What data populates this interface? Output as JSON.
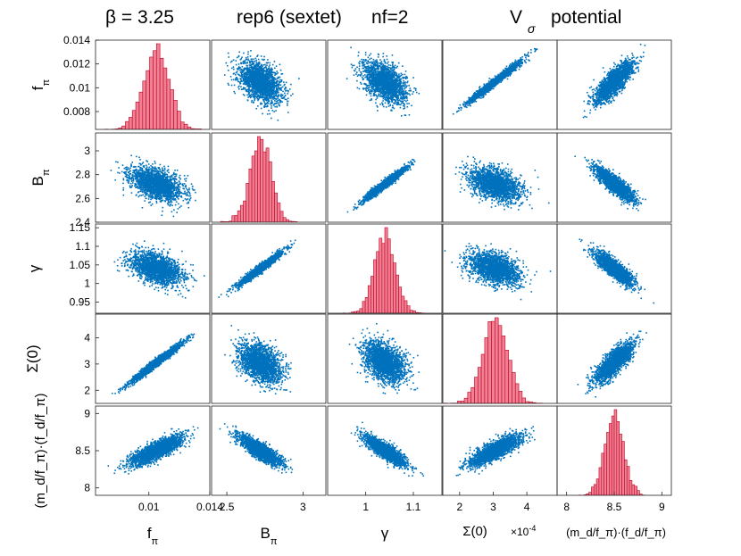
{
  "title": {
    "beta": "β = 3.25",
    "rep": "rep6 (sextet)",
    "nf": "nf=2",
    "potential_main": "V",
    "potential_sub": "σ",
    "potential_word": "potential"
  },
  "colors": {
    "scatter": "#0072bd",
    "hist_fill": "#f08094",
    "hist_edge": "#c00020",
    "axes": "#222222"
  },
  "chart_data": {
    "type": "scatter",
    "layout": "scatter-matrix",
    "variables": [
      {
        "id": "fpi",
        "label_main": "f",
        "label_sub": "π",
        "range": [
          0.0065,
          0.014
        ],
        "ticks": [
          {
            "v": 0.008,
            "t": "0.008"
          },
          {
            "v": 0.01,
            "t": "0.01"
          },
          {
            "v": 0.012,
            "t": "0.012"
          },
          {
            "v": 0.014,
            "t": "0.014"
          }
        ],
        "xticks": [
          {
            "v": 0.01,
            "t": "0.01"
          },
          {
            "v": 0.014,
            "t": "0.014"
          }
        ],
        "mean": 0.0105,
        "sd": 0.00085
      },
      {
        "id": "Bpi",
        "label_main": "B",
        "label_sub": "π",
        "range": [
          2.4,
          3.15
        ],
        "ticks": [
          {
            "v": 2.4,
            "t": "2.4"
          },
          {
            "v": 2.6,
            "t": "2.6"
          },
          {
            "v": 2.8,
            "t": "2.8"
          },
          {
            "v": 3.0,
            "t": "3"
          }
        ],
        "xticks": [
          {
            "v": 2.5,
            "t": "2.5"
          },
          {
            "v": 3.0,
            "t": "3"
          }
        ],
        "mean": 2.72,
        "sd": 0.07
      },
      {
        "id": "gamma",
        "label_main": "γ",
        "label_sub": "",
        "range": [
          0.92,
          1.16
        ],
        "ticks": [
          {
            "v": 0.95,
            "t": "0.95"
          },
          {
            "v": 1.0,
            "t": "1"
          },
          {
            "v": 1.05,
            "t": "1.05"
          },
          {
            "v": 1.1,
            "t": "1.1"
          },
          {
            "v": 1.15,
            "t": "1.15"
          }
        ],
        "xticks": [
          {
            "v": 1.0,
            "t": "1"
          },
          {
            "v": 1.1,
            "t": "1.1"
          }
        ],
        "mean": 1.04,
        "sd": 0.022
      },
      {
        "id": "sigma0",
        "label_main": "Σ(0)",
        "label_sub": "",
        "range": [
          1.5,
          4.9
        ],
        "ticks": [
          {
            "v": 2,
            "t": "2"
          },
          {
            "v": 3,
            "t": "3"
          },
          {
            "v": 4,
            "t": "4"
          }
        ],
        "xticks": [
          {
            "v": 2,
            "t": "2"
          },
          {
            "v": 3,
            "t": "3"
          },
          {
            "v": 4,
            "t": "4"
          }
        ],
        "mean": 3.05,
        "sd": 0.38
      },
      {
        "id": "mdfd",
        "label_main": "(m_d/f_π)·(f_d/f_π)",
        "label_sub": "",
        "range": [
          7.9,
          9.1
        ],
        "ticks": [
          {
            "v": 8,
            "t": "8"
          },
          {
            "v": 8.5,
            "t": "8.5"
          },
          {
            "v": 9,
            "t": "9"
          }
        ],
        "xticks": [
          {
            "v": 8,
            "t": "8"
          },
          {
            "v": 8.5,
            "t": "8.5"
          },
          {
            "v": 9,
            "t": "9"
          }
        ],
        "mean": 8.5,
        "sd": 0.1
      }
    ],
    "sigma_multiplier_label": "×10",
    "sigma_multiplier_exp": "-4",
    "correlation": [
      [
        1.0,
        -0.45,
        -0.45,
        0.98,
        0.8
      ],
      [
        -0.45,
        1.0,
        0.97,
        -0.4,
        -0.85
      ],
      [
        -0.45,
        0.97,
        1.0,
        -0.4,
        -0.85
      ],
      [
        0.98,
        -0.4,
        -0.4,
        1.0,
        0.8
      ],
      [
        0.8,
        -0.85,
        -0.85,
        0.8,
        1.0
      ]
    ],
    "samples_per_panel": 2000,
    "histogram_bins": 30,
    "grid": false
  }
}
